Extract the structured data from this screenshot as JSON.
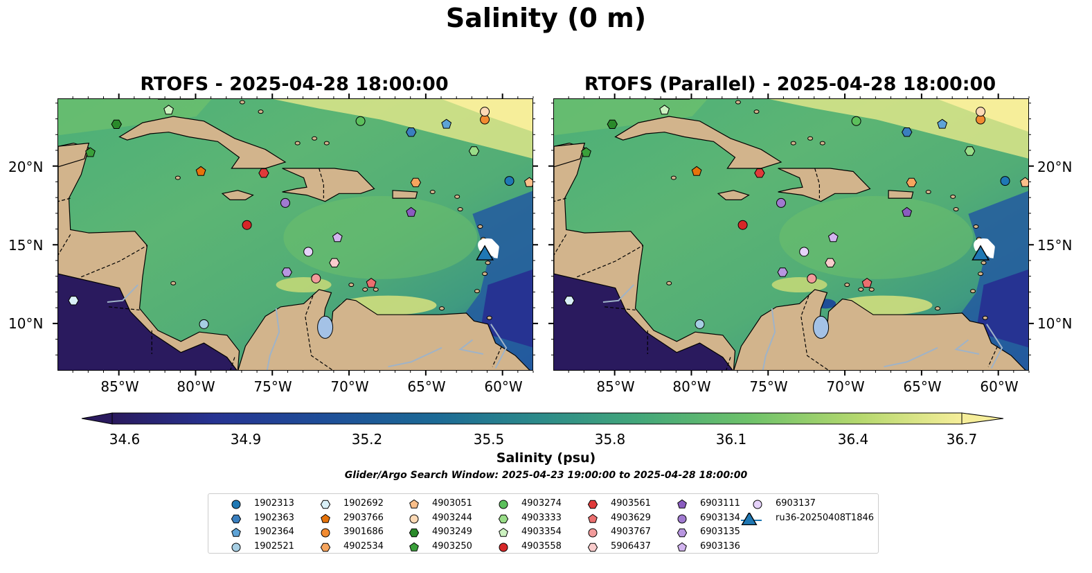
{
  "title": "Salinity (0 m)",
  "panels": [
    {
      "title": "RTOFS - 2025-04-28 18:00:00"
    },
    {
      "title": "RTOFS (Parallel) - 2025-04-28 18:00:00"
    }
  ],
  "map_extent": {
    "lon": [
      -89,
      -58
    ],
    "lat": [
      7,
      24.3
    ]
  },
  "lon_ticks": [
    "85°W",
    "80°W",
    "75°W",
    "70°W",
    "65°W",
    "60°W"
  ],
  "lat_ticks": [
    "20°N",
    "15°N",
    "10°N"
  ],
  "colorbar": {
    "label": "Salinity (psu)",
    "ticks": [
      "34.6",
      "34.9",
      "35.2",
      "35.5",
      "35.8",
      "36.1",
      "36.4",
      "36.7"
    ],
    "range": [
      34.6,
      36.7
    ],
    "colors": [
      "#2a1a5e",
      "#263392",
      "#1e4e98",
      "#1c6a96",
      "#2c8a8a",
      "#43a77a",
      "#6ec26a",
      "#b5d86e",
      "#f6ee9a"
    ]
  },
  "search_window": "Glider/Argo Search Window: 2025-04-23 19:00:00 to 2025-04-28 18:00:00",
  "legend": [
    {
      "label": "1902313",
      "marker": "circle",
      "color": "#1f78b4"
    },
    {
      "label": "1902363",
      "marker": "hexagon",
      "color": "#3a7fbf"
    },
    {
      "label": "1902364",
      "marker": "pentagon",
      "color": "#5ea3d6"
    },
    {
      "label": "1902521",
      "marker": "circle",
      "color": "#a6cee3"
    },
    {
      "label": "1902692",
      "marker": "hexagon",
      "color": "#d9f0f7"
    },
    {
      "label": "2903766",
      "marker": "pentagon",
      "color": "#e6730b"
    },
    {
      "label": "3901686",
      "marker": "circle",
      "color": "#f28b30"
    },
    {
      "label": "4902534",
      "marker": "hexagon",
      "color": "#f6a55e"
    },
    {
      "label": "4903051",
      "marker": "pentagon",
      "color": "#fbbf8a"
    },
    {
      "label": "4903244",
      "marker": "circle",
      "color": "#fdd9b5"
    },
    {
      "label": "4903249",
      "marker": "hexagon",
      "color": "#2a8a2a"
    },
    {
      "label": "4903250",
      "marker": "pentagon",
      "color": "#3aa03a"
    },
    {
      "label": "4903274",
      "marker": "circle",
      "color": "#5cc05c"
    },
    {
      "label": "4903333",
      "marker": "hexagon",
      "color": "#99dd88"
    },
    {
      "label": "4903354",
      "marker": "pentagon",
      "color": "#ccf2c0"
    },
    {
      "label": "4903558",
      "marker": "circle",
      "color": "#d62728"
    },
    {
      "label": "4903561",
      "marker": "hexagon",
      "color": "#e03a3a"
    },
    {
      "label": "4903629",
      "marker": "pentagon",
      "color": "#eb6f6f"
    },
    {
      "label": "4903767",
      "marker": "circle",
      "color": "#f29b9b"
    },
    {
      "label": "5906437",
      "marker": "hexagon",
      "color": "#f9cccc"
    },
    {
      "label": "6903111",
      "marker": "pentagon",
      "color": "#8a5cc0"
    },
    {
      "label": "6903134",
      "marker": "circle",
      "color": "#a07ad0"
    },
    {
      "label": "6903135",
      "marker": "hexagon",
      "color": "#b896e0"
    },
    {
      "label": "6903136",
      "marker": "pentagon",
      "color": "#d2b4ef"
    },
    {
      "label": "6903137",
      "marker": "circle",
      "color": "#e6d2fa"
    },
    {
      "label": "ru36-20250408T1846",
      "marker": "triangle",
      "color": "#1f78b4"
    }
  ],
  "floats": [
    {
      "label": "1902313",
      "lon": -59.6,
      "lat": 19.1
    },
    {
      "label": "1902363",
      "lon": -66.0,
      "lat": 22.2
    },
    {
      "label": "1902364",
      "lon": -63.7,
      "lat": 22.7
    },
    {
      "label": "1902521",
      "lon": -79.5,
      "lat": 10.0
    },
    {
      "label": "1902692",
      "lon": -88.0,
      "lat": 11.5
    },
    {
      "label": "2903766",
      "lon": -79.7,
      "lat": 19.7
    },
    {
      "label": "3901686",
      "lon": -61.2,
      "lat": 23.0
    },
    {
      "label": "4902534",
      "lon": -65.7,
      "lat": 19.0
    },
    {
      "label": "4903051",
      "lon": -58.3,
      "lat": 19.0
    },
    {
      "label": "4903244",
      "lon": -61.2,
      "lat": 23.5
    },
    {
      "label": "4903249",
      "lon": -85.2,
      "lat": 22.7
    },
    {
      "label": "4903250",
      "lon": -86.9,
      "lat": 20.9
    },
    {
      "label": "4903274",
      "lon": -69.3,
      "lat": 22.9
    },
    {
      "label": "4903333",
      "lon": -61.9,
      "lat": 21.0
    },
    {
      "label": "4903354",
      "lon": -81.8,
      "lat": 23.6
    },
    {
      "label": "4903558",
      "lon": -76.7,
      "lat": 16.3
    },
    {
      "label": "4903561",
      "lon": -75.6,
      "lat": 19.6
    },
    {
      "label": "4903629",
      "lon": -68.6,
      "lat": 12.6
    },
    {
      "label": "4903767",
      "lon": -72.2,
      "lat": 12.9
    },
    {
      "label": "5906437",
      "lon": -71.0,
      "lat": 13.9
    },
    {
      "label": "6903111",
      "lon": -66.0,
      "lat": 17.1
    },
    {
      "label": "6903134",
      "lon": -74.2,
      "lat": 17.7
    },
    {
      "label": "6903135",
      "lon": -74.1,
      "lat": 13.3
    },
    {
      "label": "6903136",
      "lon": -70.8,
      "lat": 15.5
    },
    {
      "label": "6903137",
      "lon": -72.7,
      "lat": 14.6
    },
    {
      "label": "ru36-20250408T1846",
      "lon": -61.2,
      "lat": 14.5
    }
  ]
}
